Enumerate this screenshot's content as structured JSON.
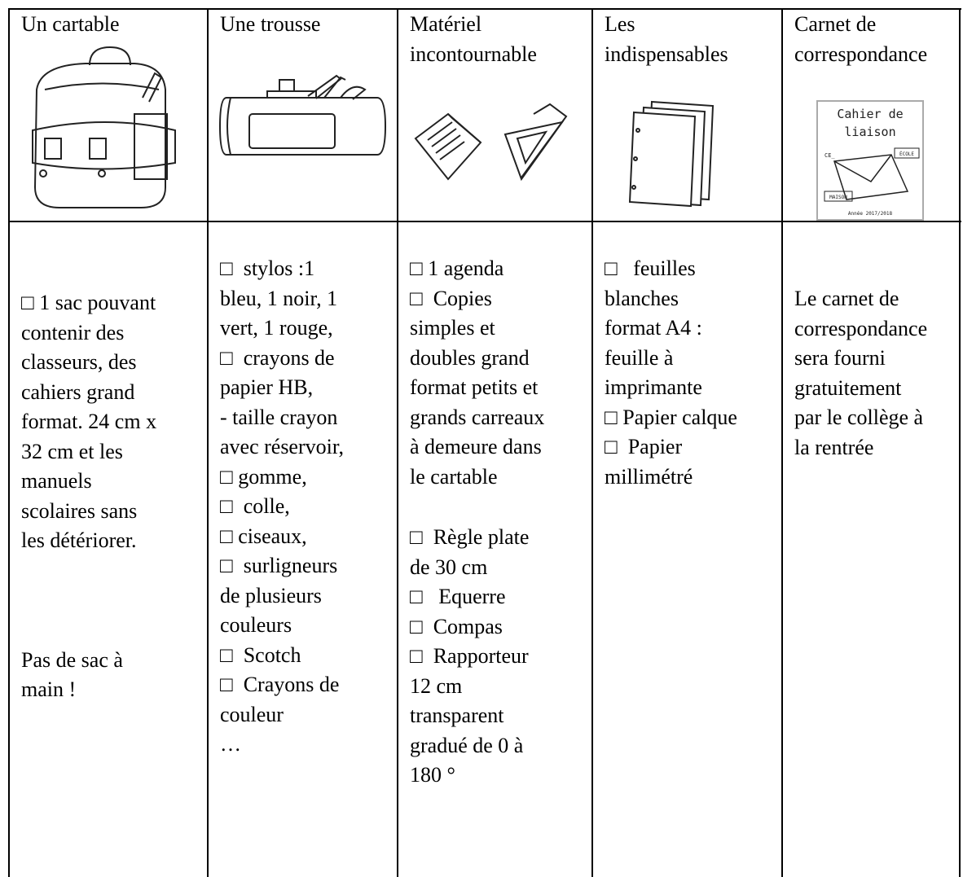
{
  "table": {
    "header": [
      {
        "title": [
          "Un cartable"
        ]
      },
      {
        "title": [
          "Une trousse"
        ]
      },
      {
        "title": [
          "Matériel",
          "incontournable"
        ]
      },
      {
        "title": [
          "Les",
          "indispensables"
        ]
      },
      {
        "title": [
          "Carnet de",
          "correspondance"
        ]
      }
    ],
    "body": [
      {
        "paragraphs": [
          [
            "□ 1 sac pouvant",
            "contenir des",
            "classeurs, des",
            "cahiers grand",
            "format. 24 cm x",
            "32 cm et les",
            "manuels",
            "scolaires sans",
            "les détériorer."
          ],
          [
            "Pas de sac à",
            "main !"
          ]
        ]
      },
      {
        "paragraphs": [
          [
            "□  stylos :1",
            "bleu, 1 noir, 1",
            "vert, 1 rouge,",
            "□  crayons de",
            "papier HB,",
            "- taille crayon",
            "avec réservoir,",
            "□ gomme,",
            "□  colle,",
            "□ ciseaux,",
            "□  surligneurs",
            "de plusieurs",
            "couleurs",
            "□  Scotch",
            "□  Crayons de",
            "couleur",
            "…"
          ]
        ]
      },
      {
        "paragraphs": [
          [
            "□ 1 agenda",
            "□  Copies",
            "simples et",
            "doubles grand",
            "format petits et",
            "grands carreaux",
            "à demeure dans",
            "le cartable"
          ],
          [
            "□  Règle plate",
            "de 30 cm",
            "□   Equerre",
            "□  Compas",
            "□  Rapporteur",
            "12 cm",
            "transparent",
            "gradué de 0 à",
            "180 °"
          ]
        ]
      },
      {
        "paragraphs": [
          [
            "□   feuilles",
            "blanches",
            "format A4 :",
            "feuille à",
            "imprimante",
            "□ Papier calque",
            "□  Papier",
            "millimétré"
          ]
        ]
      },
      {
        "paragraphs": [
          [
            "Le carnet de",
            "correspondance",
            "sera fourni",
            "gratuitement",
            "par le collège à",
            "la rentrée"
          ]
        ]
      }
    ]
  },
  "cover": {
    "title": [
      "Cahier de",
      "liaison"
    ],
    "class": "CE_",
    "school": "ÉCOLE",
    "home": "MAISON",
    "year": "Année 2017/2018"
  }
}
